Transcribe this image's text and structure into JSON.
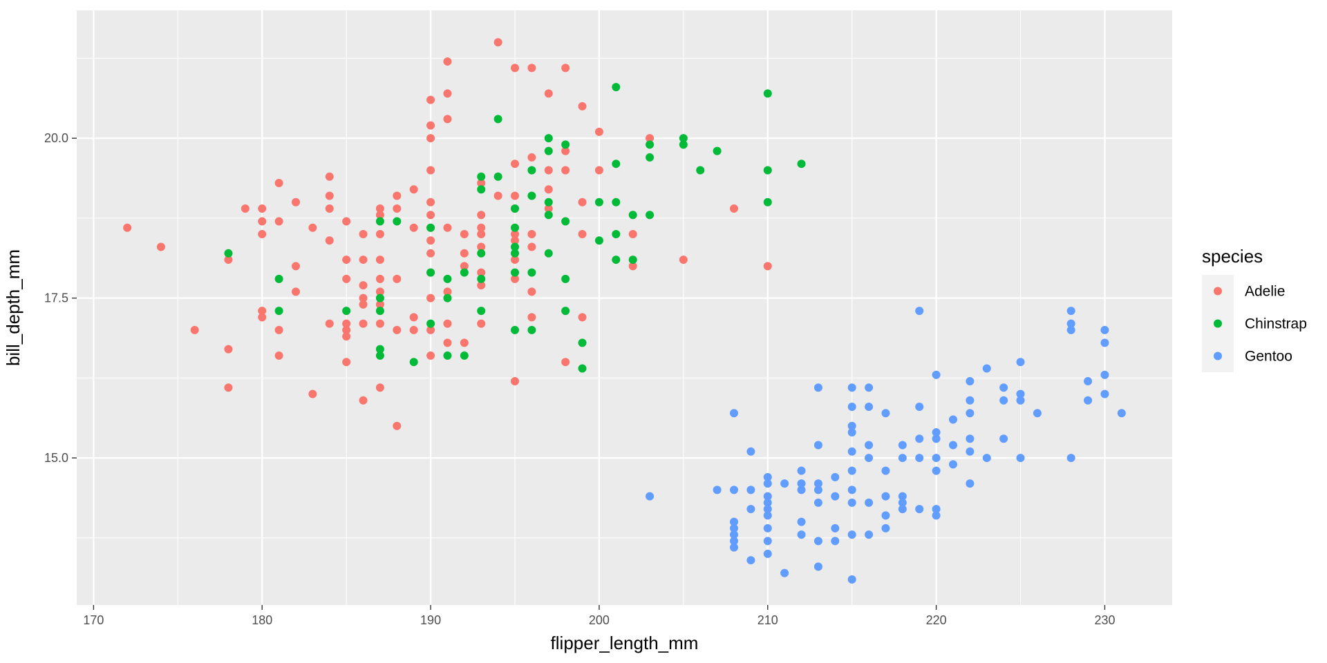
{
  "chart_data": {
    "type": "scatter",
    "xlabel": "flipper_length_mm",
    "ylabel": "bill_depth_mm",
    "xlim": [
      169,
      234
    ],
    "ylim": [
      12.7,
      22.0
    ],
    "x_ticks": [
      170,
      180,
      190,
      200,
      210,
      220,
      230
    ],
    "y_ticks": [
      15.0,
      17.5,
      20.0
    ],
    "x_tick_labels": [
      "170",
      "180",
      "190",
      "200",
      "210",
      "220",
      "230"
    ],
    "y_tick_labels": [
      "15.0",
      "17.5",
      "20.0"
    ],
    "grid": true,
    "panel_background": "#ebebeb",
    "legend": {
      "title": "species",
      "position": "right"
    },
    "series": [
      {
        "name": "Adelie",
        "color": "#F8766D",
        "points": [
          [
            172,
            18.6
          ],
          [
            174,
            18.3
          ],
          [
            176,
            17.0
          ],
          [
            178,
            18.1
          ],
          [
            178,
            16.7
          ],
          [
            178,
            16.1
          ],
          [
            179,
            18.9
          ],
          [
            180,
            18.9
          ],
          [
            180,
            18.7
          ],
          [
            180,
            18.5
          ],
          [
            180,
            17.3
          ],
          [
            180,
            17.2
          ],
          [
            181,
            19.3
          ],
          [
            181,
            18.7
          ],
          [
            181,
            17.0
          ],
          [
            181,
            16.6
          ],
          [
            182,
            19.0
          ],
          [
            182,
            18.0
          ],
          [
            182,
            17.6
          ],
          [
            183,
            18.6
          ],
          [
            183,
            16.0
          ],
          [
            184,
            19.4
          ],
          [
            184,
            19.1
          ],
          [
            184,
            18.9
          ],
          [
            184,
            18.4
          ],
          [
            184,
            17.1
          ],
          [
            185,
            18.7
          ],
          [
            185,
            18.1
          ],
          [
            185,
            17.8
          ],
          [
            185,
            17.1
          ],
          [
            185,
            17.0
          ],
          [
            185,
            16.9
          ],
          [
            185,
            16.5
          ],
          [
            186,
            18.5
          ],
          [
            186,
            18.1
          ],
          [
            186,
            17.7
          ],
          [
            186,
            17.5
          ],
          [
            186,
            17.4
          ],
          [
            186,
            17.1
          ],
          [
            186,
            15.9
          ],
          [
            187,
            18.9
          ],
          [
            187,
            18.8
          ],
          [
            187,
            18.5
          ],
          [
            187,
            18.1
          ],
          [
            187,
            17.8
          ],
          [
            187,
            17.6
          ],
          [
            187,
            17.4
          ],
          [
            187,
            17.1
          ],
          [
            187,
            16.1
          ],
          [
            188,
            19.1
          ],
          [
            188,
            18.9
          ],
          [
            188,
            17.8
          ],
          [
            188,
            17.0
          ],
          [
            188,
            15.5
          ],
          [
            189,
            19.2
          ],
          [
            189,
            18.6
          ],
          [
            189,
            17.2
          ],
          [
            189,
            17.0
          ],
          [
            190,
            20.6
          ],
          [
            190,
            20.2
          ],
          [
            190,
            20.0
          ],
          [
            190,
            19.5
          ],
          [
            190,
            19.0
          ],
          [
            190,
            18.8
          ],
          [
            190,
            18.6
          ],
          [
            190,
            18.4
          ],
          [
            190,
            18.2
          ],
          [
            190,
            17.9
          ],
          [
            190,
            17.5
          ],
          [
            190,
            17.0
          ],
          [
            190,
            16.6
          ],
          [
            191,
            21.2
          ],
          [
            191,
            20.7
          ],
          [
            191,
            20.3
          ],
          [
            191,
            18.6
          ],
          [
            191,
            17.6
          ],
          [
            191,
            17.1
          ],
          [
            191,
            16.8
          ],
          [
            192,
            18.5
          ],
          [
            192,
            18.2
          ],
          [
            192,
            18.0
          ],
          [
            192,
            16.8
          ],
          [
            193,
            19.3
          ],
          [
            193,
            18.8
          ],
          [
            193,
            18.6
          ],
          [
            193,
            18.5
          ],
          [
            193,
            18.3
          ],
          [
            193,
            17.9
          ],
          [
            193,
            17.7
          ],
          [
            193,
            17.1
          ],
          [
            194,
            21.5
          ],
          [
            194,
            19.1
          ],
          [
            195,
            21.1
          ],
          [
            195,
            19.6
          ],
          [
            195,
            19.1
          ],
          [
            195,
            18.9
          ],
          [
            195,
            18.5
          ],
          [
            195,
            18.4
          ],
          [
            195,
            18.1
          ],
          [
            195,
            17.8
          ],
          [
            195,
            16.2
          ],
          [
            196,
            21.1
          ],
          [
            196,
            19.7
          ],
          [
            196,
            18.5
          ],
          [
            196,
            18.3
          ],
          [
            196,
            17.6
          ],
          [
            196,
            17.2
          ],
          [
            197,
            20.7
          ],
          [
            197,
            19.5
          ],
          [
            197,
            19.2
          ],
          [
            197,
            18.9
          ],
          [
            198,
            21.1
          ],
          [
            198,
            19.8
          ],
          [
            198,
            19.5
          ],
          [
            198,
            16.5
          ],
          [
            199,
            20.5
          ],
          [
            199,
            19.0
          ],
          [
            199,
            18.5
          ],
          [
            199,
            17.2
          ],
          [
            200,
            20.1
          ],
          [
            200,
            19.5
          ],
          [
            202,
            18.5
          ],
          [
            202,
            18.0
          ],
          [
            203,
            20.0
          ],
          [
            205,
            18.1
          ],
          [
            208,
            18.9
          ],
          [
            210,
            18.0
          ]
        ]
      },
      {
        "name": "Chinstrap",
        "color": "#00BA38",
        "points": [
          [
            178,
            18.2
          ],
          [
            181,
            17.8
          ],
          [
            181,
            17.3
          ],
          [
            185,
            17.3
          ],
          [
            187,
            18.7
          ],
          [
            187,
            17.5
          ],
          [
            187,
            17.3
          ],
          [
            187,
            16.7
          ],
          [
            187,
            16.6
          ],
          [
            188,
            18.7
          ],
          [
            189,
            16.5
          ],
          [
            190,
            18.6
          ],
          [
            190,
            17.9
          ],
          [
            190,
            17.1
          ],
          [
            191,
            17.8
          ],
          [
            191,
            17.5
          ],
          [
            191,
            16.6
          ],
          [
            192,
            17.9
          ],
          [
            192,
            16.6
          ],
          [
            193,
            19.4
          ],
          [
            193,
            19.2
          ],
          [
            193,
            18.2
          ],
          [
            193,
            17.8
          ],
          [
            193,
            17.3
          ],
          [
            194,
            20.3
          ],
          [
            194,
            19.4
          ],
          [
            195,
            18.9
          ],
          [
            195,
            18.6
          ],
          [
            195,
            18.3
          ],
          [
            195,
            18.2
          ],
          [
            195,
            17.9
          ],
          [
            195,
            17.0
          ],
          [
            196,
            19.5
          ],
          [
            196,
            19.1
          ],
          [
            196,
            17.9
          ],
          [
            196,
            17.0
          ],
          [
            197,
            20.0
          ],
          [
            197,
            19.8
          ],
          [
            197,
            19.0
          ],
          [
            197,
            18.8
          ],
          [
            197,
            18.2
          ],
          [
            198,
            19.9
          ],
          [
            198,
            18.7
          ],
          [
            198,
            17.8
          ],
          [
            198,
            17.3
          ],
          [
            199,
            16.8
          ],
          [
            199,
            16.4
          ],
          [
            200,
            19.0
          ],
          [
            200,
            18.4
          ],
          [
            201,
            20.8
          ],
          [
            201,
            19.6
          ],
          [
            201,
            19.0
          ],
          [
            201,
            18.5
          ],
          [
            201,
            18.1
          ],
          [
            202,
            18.8
          ],
          [
            202,
            18.1
          ],
          [
            203,
            19.9
          ],
          [
            203,
            19.7
          ],
          [
            203,
            18.8
          ],
          [
            205,
            20.0
          ],
          [
            205,
            19.9
          ],
          [
            206,
            19.5
          ],
          [
            207,
            19.8
          ],
          [
            210,
            20.7
          ],
          [
            210,
            19.5
          ],
          [
            210,
            19.0
          ],
          [
            212,
            19.6
          ]
        ]
      },
      {
        "name": "Gentoo",
        "color": "#619CFF",
        "points": [
          [
            203,
            14.4
          ],
          [
            207,
            14.5
          ],
          [
            208,
            15.7
          ],
          [
            208,
            14.5
          ],
          [
            208,
            14.0
          ],
          [
            208,
            13.9
          ],
          [
            208,
            13.8
          ],
          [
            208,
            13.7
          ],
          [
            208,
            13.6
          ],
          [
            209,
            15.1
          ],
          [
            209,
            14.5
          ],
          [
            209,
            14.2
          ],
          [
            209,
            13.4
          ],
          [
            210,
            14.7
          ],
          [
            210,
            14.6
          ],
          [
            210,
            14.4
          ],
          [
            210,
            14.3
          ],
          [
            210,
            14.2
          ],
          [
            210,
            14.1
          ],
          [
            210,
            13.9
          ],
          [
            210,
            13.7
          ],
          [
            210,
            13.5
          ],
          [
            211,
            14.6
          ],
          [
            211,
            13.2
          ],
          [
            212,
            14.8
          ],
          [
            212,
            14.6
          ],
          [
            212,
            14.5
          ],
          [
            212,
            14.0
          ],
          [
            212,
            13.8
          ],
          [
            213,
            16.1
          ],
          [
            213,
            15.2
          ],
          [
            213,
            14.6
          ],
          [
            213,
            14.5
          ],
          [
            213,
            14.3
          ],
          [
            213,
            13.7
          ],
          [
            213,
            13.3
          ],
          [
            214,
            14.7
          ],
          [
            214,
            14.4
          ],
          [
            214,
            13.9
          ],
          [
            214,
            13.7
          ],
          [
            215,
            16.1
          ],
          [
            215,
            15.8
          ],
          [
            215,
            15.5
          ],
          [
            215,
            15.4
          ],
          [
            215,
            15.1
          ],
          [
            215,
            14.8
          ],
          [
            215,
            14.5
          ],
          [
            215,
            14.3
          ],
          [
            215,
            13.8
          ],
          [
            215,
            13.1
          ],
          [
            216,
            16.1
          ],
          [
            216,
            15.8
          ],
          [
            216,
            15.2
          ],
          [
            216,
            15.0
          ],
          [
            216,
            14.3
          ],
          [
            216,
            13.8
          ],
          [
            217,
            15.7
          ],
          [
            217,
            14.8
          ],
          [
            217,
            14.4
          ],
          [
            217,
            14.1
          ],
          [
            217,
            13.9
          ],
          [
            218,
            15.2
          ],
          [
            218,
            15.0
          ],
          [
            218,
            14.4
          ],
          [
            218,
            14.3
          ],
          [
            218,
            14.2
          ],
          [
            219,
            17.3
          ],
          [
            219,
            15.8
          ],
          [
            219,
            15.3
          ],
          [
            219,
            15.0
          ],
          [
            219,
            14.2
          ],
          [
            220,
            16.3
          ],
          [
            220,
            15.4
          ],
          [
            220,
            15.3
          ],
          [
            220,
            15.0
          ],
          [
            220,
            14.8
          ],
          [
            220,
            14.2
          ],
          [
            220,
            14.1
          ],
          [
            221,
            15.6
          ],
          [
            221,
            15.2
          ],
          [
            221,
            14.9
          ],
          [
            222,
            16.2
          ],
          [
            222,
            15.9
          ],
          [
            222,
            15.7
          ],
          [
            222,
            15.3
          ],
          [
            222,
            15.1
          ],
          [
            222,
            14.6
          ],
          [
            223,
            16.4
          ],
          [
            223,
            15.0
          ],
          [
            224,
            16.1
          ],
          [
            224,
            15.9
          ],
          [
            224,
            15.3
          ],
          [
            225,
            16.5
          ],
          [
            225,
            16.0
          ],
          [
            225,
            15.9
          ],
          [
            225,
            15.0
          ],
          [
            226,
            15.7
          ],
          [
            228,
            17.3
          ],
          [
            228,
            17.1
          ],
          [
            228,
            17.0
          ],
          [
            228,
            15.0
          ],
          [
            229,
            16.2
          ],
          [
            229,
            15.9
          ],
          [
            230,
            17.0
          ],
          [
            230,
            16.8
          ],
          [
            230,
            16.3
          ],
          [
            230,
            16.0
          ],
          [
            231,
            15.7
          ]
        ]
      }
    ]
  }
}
